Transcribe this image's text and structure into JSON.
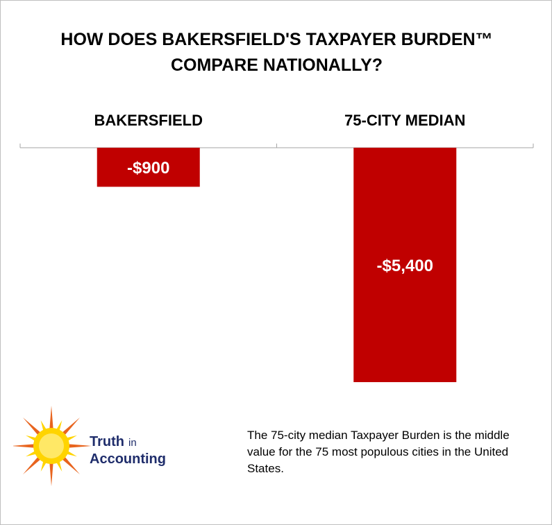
{
  "chart_data": {
    "type": "bar",
    "title": "HOW DOES BAKERSFIELD'S TAXPAYER BURDEN™ COMPARE NATIONALLY?",
    "title_lines": [
      "HOW DOES BAKERSFIELD'S TAXPAYER BURDEN™",
      "COMPARE NATIONALLY?"
    ],
    "categories": [
      "BAKERSFIELD",
      "75-CITY MEDIAN"
    ],
    "values": [
      -900,
      -5400
    ],
    "data_labels": [
      "-$900",
      "-$5,400"
    ],
    "ylim": [
      -5800,
      0
    ],
    "category_labels_position": "top",
    "legend": "none",
    "grid": false,
    "bar_color": "#c00000",
    "label_color": "#ffffff"
  },
  "footnote": "The 75-city median Taxpayer Burden is the middle value for the 75 most populous cities in the United States.",
  "logo": {
    "word1": "Truth",
    "word2": "in",
    "word3": "Accounting",
    "text_color": "#1f2d6b",
    "sun_color": "#ffd400",
    "ray_color": "#e8641e"
  }
}
